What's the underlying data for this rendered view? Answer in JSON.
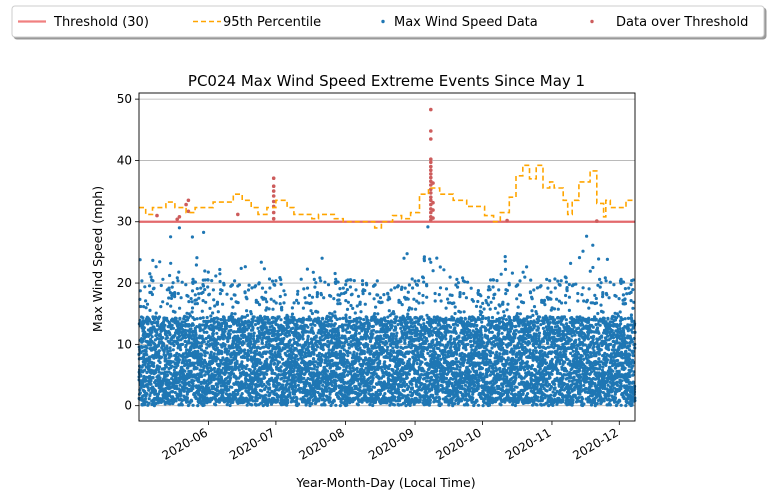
{
  "chart_data": {
    "type": "scatter",
    "title": "PC024 Max Wind Speed Extreme Events Since May 1",
    "xlabel": "Year-Month-Day (Local Time)",
    "ylabel": "Max Wind Speed (mph)",
    "xlim": [
      "2020-05-01",
      "2020-12-08"
    ],
    "ylim": [
      -2.5,
      51
    ],
    "x_tick_labels": [
      "2020-06",
      "2020-07",
      "2020-08",
      "2020-09",
      "2020-10",
      "2020-11",
      "2020-12"
    ],
    "x_tick_dates": [
      "2020-06-01",
      "2020-07-01",
      "2020-08-01",
      "2020-09-01",
      "2020-10-01",
      "2020-11-01",
      "2020-12-01"
    ],
    "y_ticks": [
      0,
      10,
      20,
      30,
      40,
      50
    ],
    "grid": "horizontal",
    "legend_position": "top",
    "colors": {
      "threshold": "#e3696c",
      "percentile": "#ffa500",
      "data": "#1f77b4",
      "over": "#cd5c5c"
    },
    "series": [
      {
        "name": "Threshold (30)",
        "kind": "hline",
        "y": 30
      },
      {
        "name": "95th Percentile",
        "kind": "step-line",
        "points": [
          [
            "2020-05-01",
            32.3
          ],
          [
            "2020-05-04",
            31.2
          ],
          [
            "2020-05-07",
            32.3
          ],
          [
            "2020-05-13",
            33.2
          ],
          [
            "2020-05-17",
            32.3
          ],
          [
            "2020-05-22",
            31.5
          ],
          [
            "2020-05-26",
            32.3
          ],
          [
            "2020-06-03",
            33.2
          ],
          [
            "2020-06-12",
            34.5
          ],
          [
            "2020-06-16",
            33.5
          ],
          [
            "2020-06-20",
            32.3
          ],
          [
            "2020-06-23",
            31.2
          ],
          [
            "2020-06-27",
            32.3
          ],
          [
            "2020-07-01",
            33.5
          ],
          [
            "2020-07-06",
            32.3
          ],
          [
            "2020-07-09",
            31.2
          ],
          [
            "2020-07-17",
            30.5
          ],
          [
            "2020-07-20",
            31.2
          ],
          [
            "2020-07-27",
            30.5
          ],
          [
            "2020-07-31",
            30.0
          ],
          [
            "2020-08-14",
            29.0
          ],
          [
            "2020-08-17",
            30.0
          ],
          [
            "2020-08-22",
            31.0
          ],
          [
            "2020-08-26",
            30.5
          ],
          [
            "2020-08-30",
            31.5
          ],
          [
            "2020-09-03",
            34.5
          ],
          [
            "2020-09-07",
            35.5
          ],
          [
            "2020-09-12",
            34.5
          ],
          [
            "2020-09-18",
            33.5
          ],
          [
            "2020-09-24",
            32.5
          ],
          [
            "2020-10-02",
            31.0
          ],
          [
            "2020-10-06",
            30.0
          ],
          [
            "2020-10-09",
            31.5
          ],
          [
            "2020-10-13",
            34.0
          ],
          [
            "2020-10-16",
            37.5
          ],
          [
            "2020-10-19",
            39.2
          ],
          [
            "2020-10-22",
            37.0
          ],
          [
            "2020-10-25",
            39.2
          ],
          [
            "2020-10-28",
            35.5
          ],
          [
            "2020-10-31",
            36.5
          ],
          [
            "2020-11-02",
            35.5
          ],
          [
            "2020-11-06",
            33.5
          ],
          [
            "2020-11-08",
            31.2
          ],
          [
            "2020-11-10",
            33.5
          ],
          [
            "2020-11-13",
            36.5
          ],
          [
            "2020-11-18",
            38.3
          ],
          [
            "2020-11-21",
            33.0
          ],
          [
            "2020-11-24",
            30.8
          ],
          [
            "2020-11-25",
            33.5
          ],
          [
            "2020-11-27",
            32.3
          ],
          [
            "2020-12-04",
            33.5
          ],
          [
            "2020-12-08",
            33.5
          ]
        ]
      },
      {
        "name": "Max Wind Speed Data",
        "kind": "scatter",
        "approx_count": 9000,
        "typical_range": [
          0,
          15
        ],
        "envelope": [
          [
            "2020-05-01",
            24
          ],
          [
            "2020-05-10",
            26
          ],
          [
            "2020-05-19",
            29.5
          ],
          [
            "2020-05-27",
            29.5
          ],
          [
            "2020-06-04",
            26
          ],
          [
            "2020-06-12",
            20
          ],
          [
            "2020-06-20",
            29
          ],
          [
            "2020-06-29",
            22
          ],
          [
            "2020-07-08",
            17
          ],
          [
            "2020-07-15",
            23
          ],
          [
            "2020-07-24",
            25
          ],
          [
            "2020-08-02",
            20
          ],
          [
            "2020-08-10",
            23
          ],
          [
            "2020-08-19",
            19
          ],
          [
            "2020-08-28",
            27
          ],
          [
            "2020-09-07",
            30
          ],
          [
            "2020-09-14",
            22
          ],
          [
            "2020-09-22",
            21
          ],
          [
            "2020-10-02",
            17
          ],
          [
            "2020-10-10",
            27
          ],
          [
            "2020-10-16",
            26
          ],
          [
            "2020-10-24",
            23
          ],
          [
            "2020-11-03",
            22
          ],
          [
            "2020-11-10",
            24
          ],
          [
            "2020-11-17",
            28
          ],
          [
            "2020-11-24",
            25
          ],
          [
            "2020-12-01",
            22
          ],
          [
            "2020-12-08",
            20
          ]
        ]
      },
      {
        "name": "Data over Threshold",
        "kind": "scatter",
        "points": [
          [
            "2020-05-09",
            31.0
          ],
          [
            "2020-05-18",
            30.4
          ],
          [
            "2020-05-19",
            30.8
          ],
          [
            "2020-05-22",
            32.8
          ],
          [
            "2020-05-23",
            33.5
          ],
          [
            "2020-05-23",
            31.7
          ],
          [
            "2020-06-14",
            31.2
          ],
          [
            "2020-06-30",
            30.5
          ],
          [
            "2020-06-30",
            31.5
          ],
          [
            "2020-06-30",
            32.5
          ],
          [
            "2020-06-30",
            33.3
          ],
          [
            "2020-06-30",
            34.2
          ],
          [
            "2020-06-30",
            35.0
          ],
          [
            "2020-06-30",
            35.8
          ],
          [
            "2020-06-30",
            37.1
          ],
          [
            "2020-09-08",
            30.3
          ],
          [
            "2020-09-08",
            30.8
          ],
          [
            "2020-09-08",
            31.5
          ],
          [
            "2020-09-08",
            32.1
          ],
          [
            "2020-09-08",
            32.8
          ],
          [
            "2020-09-08",
            33.5
          ],
          [
            "2020-09-08",
            34.0
          ],
          [
            "2020-09-08",
            34.7
          ],
          [
            "2020-09-08",
            35.3
          ],
          [
            "2020-09-08",
            36.0
          ],
          [
            "2020-09-08",
            36.6
          ],
          [
            "2020-09-08",
            37.2
          ],
          [
            "2020-09-08",
            37.8
          ],
          [
            "2020-09-08",
            38.4
          ],
          [
            "2020-09-08",
            39.0
          ],
          [
            "2020-09-08",
            39.7
          ],
          [
            "2020-09-08",
            40.2
          ],
          [
            "2020-09-08",
            43.5
          ],
          [
            "2020-09-08",
            44.8
          ],
          [
            "2020-09-08",
            48.3
          ],
          [
            "2020-09-09",
            30.6
          ],
          [
            "2020-09-09",
            31.9
          ],
          [
            "2020-09-09",
            33.1
          ],
          [
            "2020-09-09",
            36.3
          ],
          [
            "2020-10-12",
            30.2
          ],
          [
            "2020-11-21",
            30.1
          ]
        ]
      }
    ]
  }
}
